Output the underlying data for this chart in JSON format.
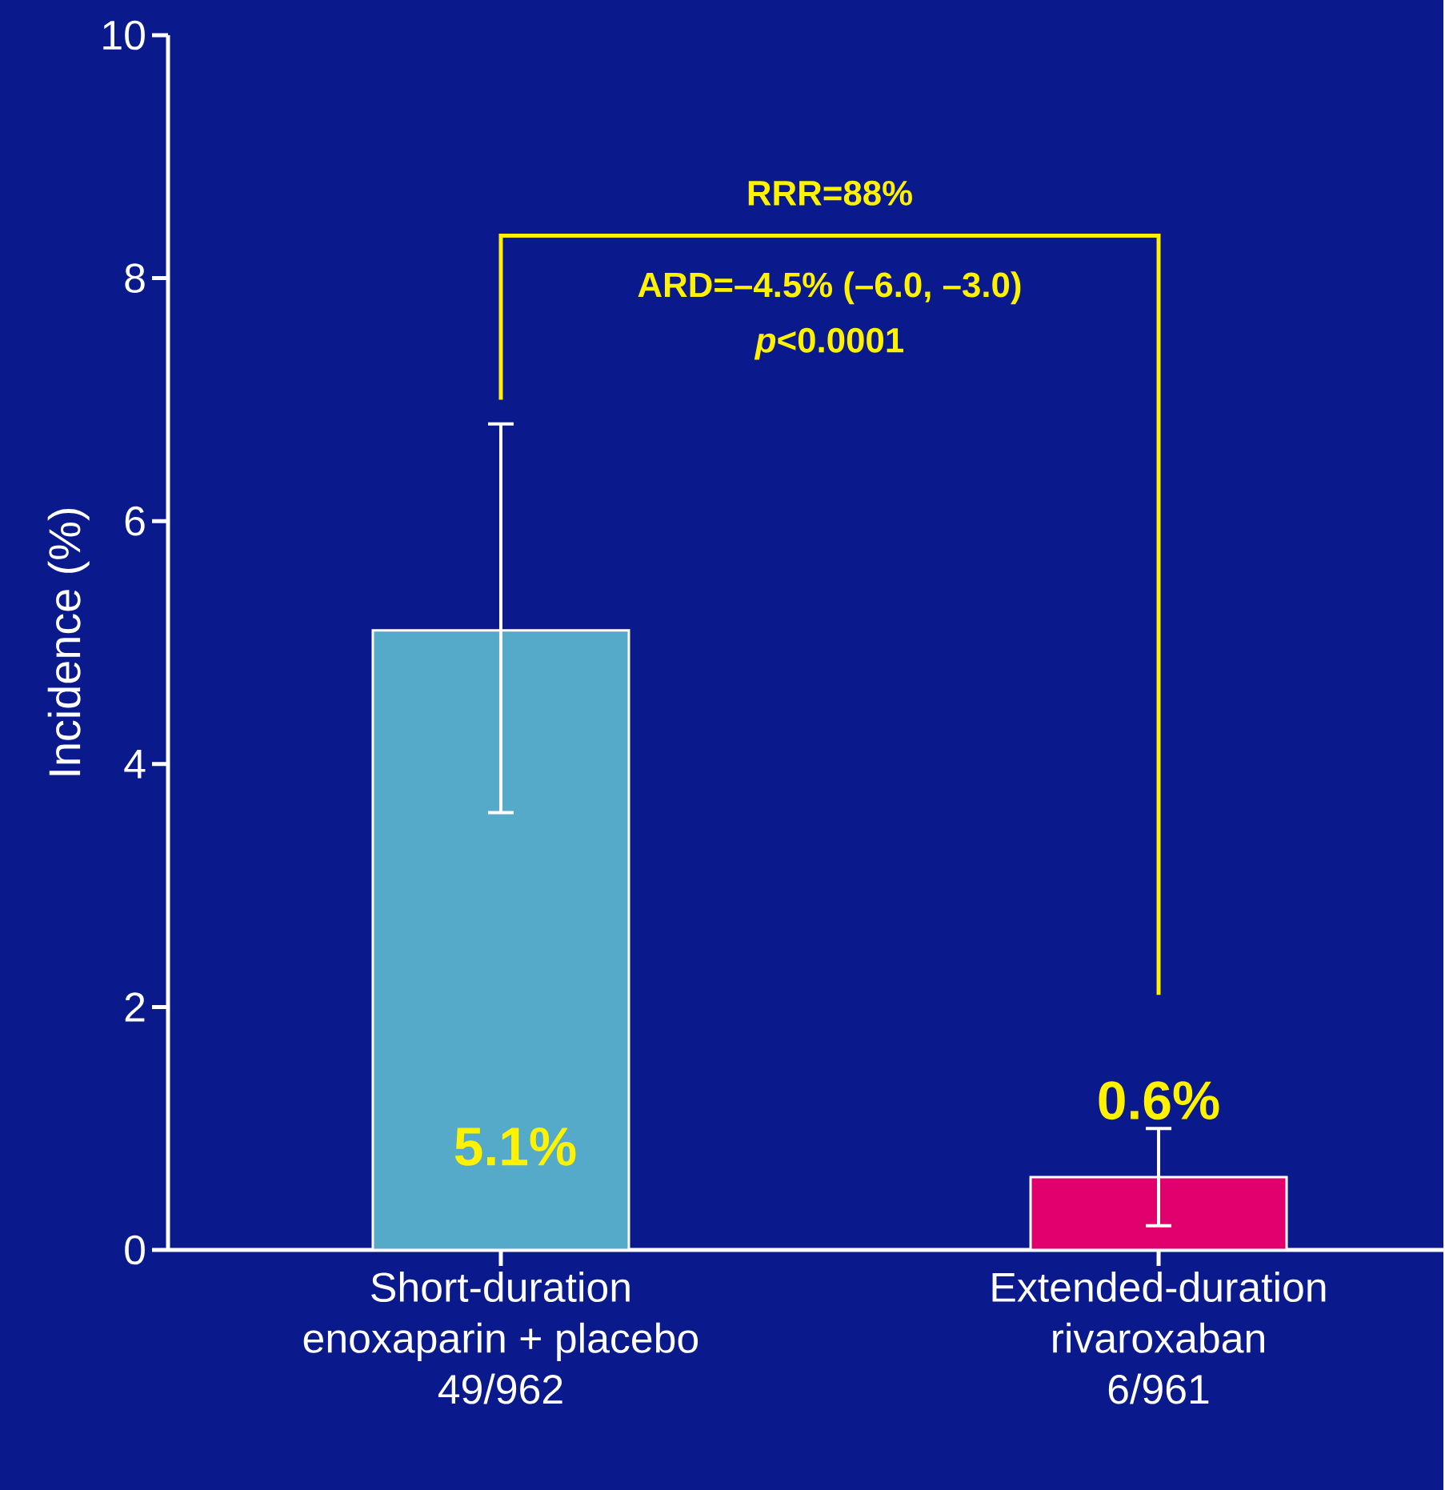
{
  "chart_data": {
    "type": "bar",
    "ylabel": "Incidence (%)",
    "categories": [
      "Short-duration\nenoxaparin + placebo\n49/962",
      "Extended-duration\nrivaroxaban\n6/961"
    ],
    "values": [
      5.1,
      0.6
    ],
    "colors": [
      "#54aac8",
      "#e0006e"
    ],
    "errors": [
      [
        3.6,
        6.8
      ],
      [
        0.2,
        1.0
      ]
    ],
    "value_labels": [
      "5.1%",
      "0.6%"
    ],
    "ylim": [
      0,
      10
    ],
    "yticks": [
      0,
      2,
      4,
      6,
      8,
      10
    ],
    "grid": false,
    "annotations": [
      "RRR=88%",
      "ARD=–4.5% (–6.0, –3.0)",
      "*p*<0.0001"
    ]
  }
}
